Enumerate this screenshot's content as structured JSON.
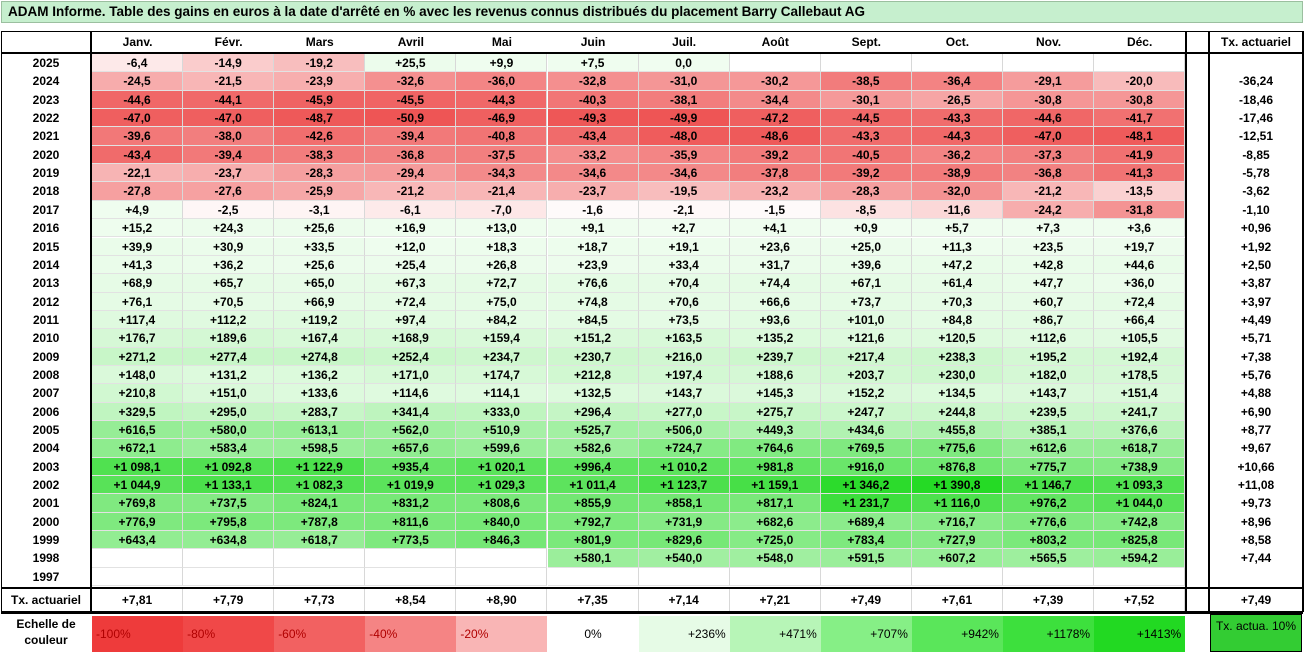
{
  "title": "ADAM Informe. Table des gains en euros à la date d'arrêté en % avec les revenus connus distribués du placement Barry Callebaut AG",
  "months": [
    "Janv.",
    "Févr.",
    "Mars",
    "Avril",
    "Mai",
    "Juin",
    "Juil.",
    "Août",
    "Sept.",
    "Oct.",
    "Nov.",
    "Déc."
  ],
  "tx_header": "Tx. actuariel",
  "rows": [
    {
      "year": "2025",
      "vals": [
        "-6,4",
        "-14,9",
        "-19,2",
        "+25,5",
        "+9,9",
        "+7,5",
        "0,0",
        "",
        "",
        "",
        "",
        ""
      ],
      "tx": ""
    },
    {
      "year": "2024",
      "vals": [
        "-24,5",
        "-21,5",
        "-23,9",
        "-32,6",
        "-36,0",
        "-32,8",
        "-31,0",
        "-30,2",
        "-38,5",
        "-36,4",
        "-29,1",
        "-20,0"
      ],
      "tx": "-36,24"
    },
    {
      "year": "2023",
      "vals": [
        "-44,6",
        "-44,1",
        "-45,9",
        "-45,5",
        "-44,3",
        "-40,3",
        "-38,1",
        "-34,4",
        "-30,1",
        "-26,5",
        "-30,8",
        "-30,8"
      ],
      "tx": "-18,46"
    },
    {
      "year": "2022",
      "vals": [
        "-47,0",
        "-47,0",
        "-48,7",
        "-50,9",
        "-46,9",
        "-49,3",
        "-49,9",
        "-47,2",
        "-44,5",
        "-43,3",
        "-44,6",
        "-41,7"
      ],
      "tx": "-17,46"
    },
    {
      "year": "2021",
      "vals": [
        "-39,6",
        "-38,0",
        "-42,6",
        "-39,4",
        "-40,8",
        "-43,4",
        "-48,0",
        "-48,6",
        "-43,3",
        "-44,3",
        "-47,0",
        "-48,1"
      ],
      "tx": "-12,51"
    },
    {
      "year": "2020",
      "vals": [
        "-43,4",
        "-39,4",
        "-38,3",
        "-36,8",
        "-37,5",
        "-33,2",
        "-35,9",
        "-39,2",
        "-40,5",
        "-36,2",
        "-37,3",
        "-41,9"
      ],
      "tx": "-8,85"
    },
    {
      "year": "2019",
      "vals": [
        "-22,1",
        "-23,7",
        "-28,3",
        "-29,4",
        "-34,3",
        "-34,6",
        "-34,6",
        "-37,8",
        "-39,2",
        "-38,9",
        "-36,8",
        "-41,3"
      ],
      "tx": "-5,78"
    },
    {
      "year": "2018",
      "vals": [
        "-27,8",
        "-27,6",
        "-25,9",
        "-21,2",
        "-21,4",
        "-23,7",
        "-19,5",
        "-23,2",
        "-28,3",
        "-32,0",
        "-21,2",
        "-13,5"
      ],
      "tx": "-3,62"
    },
    {
      "year": "2017",
      "vals": [
        "+4,9",
        "-2,5",
        "-3,1",
        "-6,1",
        "-7,0",
        "-1,6",
        "-2,1",
        "-1,5",
        "-8,5",
        "-11,6",
        "-24,2",
        "-31,8"
      ],
      "tx": "-1,10"
    },
    {
      "year": "2016",
      "vals": [
        "+15,2",
        "+24,3",
        "+25,6",
        "+16,9",
        "+13,0",
        "+9,1",
        "+2,7",
        "+4,1",
        "+0,9",
        "+5,7",
        "+7,3",
        "+3,6"
      ],
      "tx": "+0,96"
    },
    {
      "year": "2015",
      "vals": [
        "+39,9",
        "+30,9",
        "+33,5",
        "+12,0",
        "+18,3",
        "+18,7",
        "+19,1",
        "+23,6",
        "+25,0",
        "+11,3",
        "+23,5",
        "+19,7"
      ],
      "tx": "+1,92"
    },
    {
      "year": "2014",
      "vals": [
        "+41,3",
        "+36,2",
        "+25,6",
        "+25,4",
        "+26,8",
        "+23,9",
        "+33,4",
        "+31,7",
        "+39,6",
        "+47,2",
        "+42,8",
        "+44,6"
      ],
      "tx": "+2,50"
    },
    {
      "year": "2013",
      "vals": [
        "+68,9",
        "+65,7",
        "+65,0",
        "+67,3",
        "+72,7",
        "+76,6",
        "+70,4",
        "+74,4",
        "+67,1",
        "+61,4",
        "+47,7",
        "+36,0"
      ],
      "tx": "+3,87"
    },
    {
      "year": "2012",
      "vals": [
        "+76,1",
        "+70,5",
        "+66,9",
        "+72,4",
        "+75,0",
        "+74,8",
        "+70,6",
        "+66,6",
        "+73,7",
        "+70,3",
        "+60,7",
        "+72,4"
      ],
      "tx": "+3,97"
    },
    {
      "year": "2011",
      "vals": [
        "+117,4",
        "+112,2",
        "+119,2",
        "+97,4",
        "+84,2",
        "+84,5",
        "+73,5",
        "+93,6",
        "+101,0",
        "+84,8",
        "+86,7",
        "+66,4"
      ],
      "tx": "+4,49"
    },
    {
      "year": "2010",
      "vals": [
        "+176,7",
        "+189,6",
        "+167,4",
        "+168,9",
        "+159,4",
        "+151,2",
        "+163,5",
        "+135,2",
        "+121,6",
        "+120,5",
        "+112,6",
        "+105,5"
      ],
      "tx": "+5,71"
    },
    {
      "year": "2009",
      "vals": [
        "+271,2",
        "+277,4",
        "+274,8",
        "+252,4",
        "+234,7",
        "+230,7",
        "+216,0",
        "+239,7",
        "+217,4",
        "+238,3",
        "+195,2",
        "+192,4"
      ],
      "tx": "+7,38"
    },
    {
      "year": "2008",
      "vals": [
        "+148,0",
        "+131,2",
        "+136,2",
        "+171,0",
        "+174,7",
        "+212,8",
        "+197,4",
        "+188,6",
        "+203,7",
        "+230,0",
        "+182,0",
        "+178,5"
      ],
      "tx": "+5,76"
    },
    {
      "year": "2007",
      "vals": [
        "+210,8",
        "+151,0",
        "+133,6",
        "+114,6",
        "+114,1",
        "+132,5",
        "+143,7",
        "+145,3",
        "+152,2",
        "+134,5",
        "+143,7",
        "+151,4"
      ],
      "tx": "+4,88"
    },
    {
      "year": "2006",
      "vals": [
        "+329,5",
        "+295,0",
        "+283,7",
        "+341,4",
        "+333,0",
        "+296,4",
        "+277,0",
        "+275,7",
        "+247,7",
        "+244,8",
        "+239,5",
        "+241,7"
      ],
      "tx": "+6,90"
    },
    {
      "year": "2005",
      "vals": [
        "+616,5",
        "+580,0",
        "+613,1",
        "+562,0",
        "+510,9",
        "+525,7",
        "+506,0",
        "+449,3",
        "+434,6",
        "+455,8",
        "+385,1",
        "+376,6"
      ],
      "tx": "+8,77"
    },
    {
      "year": "2004",
      "vals": [
        "+672,1",
        "+583,4",
        "+598,5",
        "+657,6",
        "+599,6",
        "+582,6",
        "+724,7",
        "+764,6",
        "+769,5",
        "+775,6",
        "+612,6",
        "+618,7"
      ],
      "tx": "+9,67"
    },
    {
      "year": "2003",
      "vals": [
        "+1 098,1",
        "+1 092,8",
        "+1 122,9",
        "+935,4",
        "+1 020,1",
        "+996,4",
        "+1 010,2",
        "+981,8",
        "+916,0",
        "+876,8",
        "+775,7",
        "+738,9"
      ],
      "tx": "+10,66"
    },
    {
      "year": "2002",
      "vals": [
        "+1 044,9",
        "+1 133,1",
        "+1 082,3",
        "+1 019,9",
        "+1 029,3",
        "+1 011,4",
        "+1 123,7",
        "+1 159,1",
        "+1 346,2",
        "+1 390,8",
        "+1 146,7",
        "+1 093,3"
      ],
      "tx": "+11,08"
    },
    {
      "year": "2001",
      "vals": [
        "+769,8",
        "+737,5",
        "+824,1",
        "+831,2",
        "+808,6",
        "+855,9",
        "+858,1",
        "+817,1",
        "+1 231,7",
        "+1 116,0",
        "+976,2",
        "+1 044,0"
      ],
      "tx": "+9,73"
    },
    {
      "year": "2000",
      "vals": [
        "+776,9",
        "+795,8",
        "+787,8",
        "+811,6",
        "+840,0",
        "+792,7",
        "+731,9",
        "+682,6",
        "+689,4",
        "+716,7",
        "+776,6",
        "+742,8"
      ],
      "tx": "+8,96"
    },
    {
      "year": "1999",
      "vals": [
        "+643,4",
        "+634,8",
        "+618,7",
        "+773,5",
        "+846,3",
        "+801,9",
        "+829,6",
        "+725,0",
        "+783,4",
        "+727,9",
        "+803,2",
        "+825,8"
      ],
      "tx": "+8,58"
    },
    {
      "year": "1998",
      "vals": [
        "",
        "",
        "",
        "",
        "",
        "+580,1",
        "+540,0",
        "+548,0",
        "+591,5",
        "+607,2",
        "+565,5",
        "+594,2"
      ],
      "tx": "+7,44"
    },
    {
      "year": "1997",
      "vals": [
        "",
        "",
        "",
        "",
        "",
        "",
        "",
        "",
        "",
        "",
        "",
        ""
      ],
      "tx": ""
    }
  ],
  "footer": {
    "label": "Tx. actuariel",
    "vals": [
      "+7,81",
      "+7,79",
      "+7,73",
      "+8,54",
      "+8,90",
      "+7,35",
      "+7,14",
      "+7,21",
      "+7,49",
      "+7,61",
      "+7,39",
      "+7,52"
    ],
    "tx": "+7,49"
  },
  "legend": {
    "label": "Echelle de couleur",
    "items": [
      {
        "text": "-100%",
        "color": "#ee3b3b"
      },
      {
        "text": "-80%",
        "color": "#f04848"
      },
      {
        "text": "-60%",
        "color": "#f26161"
      },
      {
        "text": "-40%",
        "color": "#f58484"
      },
      {
        "text": "-20%",
        "color": "#f9b5b5"
      },
      {
        "text": "0%",
        "color": "#ffffff"
      },
      {
        "text": "+236%",
        "color": "#e6fbe6"
      },
      {
        "text": "+471%",
        "color": "#b7f5b7"
      },
      {
        "text": "+707%",
        "color": "#86ef86"
      },
      {
        "text": "+942%",
        "color": "#5ae65a"
      },
      {
        "text": "+1178%",
        "color": "#3de03d"
      },
      {
        "text": "+1413%",
        "color": "#22d922"
      }
    ],
    "tx_label": "Tx. actua. 10%"
  }
}
